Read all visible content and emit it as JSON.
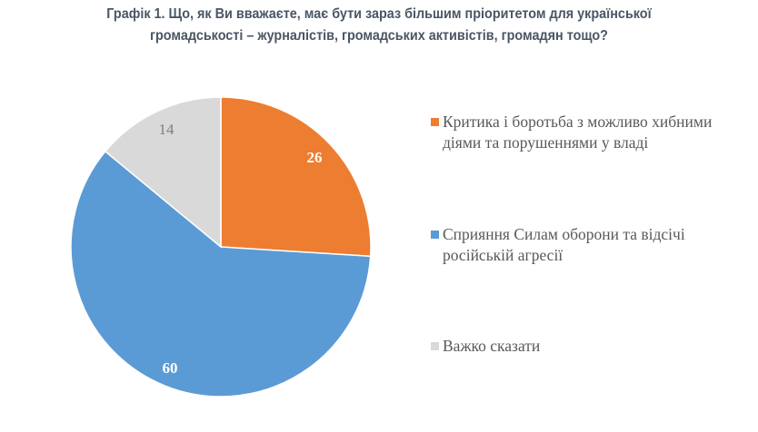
{
  "chart_data": {
    "type": "pie",
    "title": "Графік 1. Що, як Ви вважаєте, має бути зараз більшим пріоритетом для української громадськості – журналістів, громадських активістів, громадян тощо?",
    "title_lines": [
      "Графік 1. Що, як Ви вважаєте, має бути зараз більшим пріоритетом для української",
      "громадськості – журналістів, громадських активістів, громадян тощо?"
    ],
    "legend_placement": "right",
    "slices": [
      {
        "label": "Критика і боротьба з можливо хибними діями та порушеннями у владі",
        "value": 26,
        "data_label": "26",
        "color": "#ed7d31",
        "label_color": "#ffffff"
      },
      {
        "label": "Сприяння Силам оборони та відсічі російській агресії",
        "value": 60,
        "data_label": "60",
        "color": "#5b9bd5",
        "label_color": "#ffffff"
      },
      {
        "label": "Важко сказати",
        "value": 14,
        "data_label": "14",
        "color": "#d9d9d9",
        "label_color": "#7f7f7f"
      }
    ]
  }
}
